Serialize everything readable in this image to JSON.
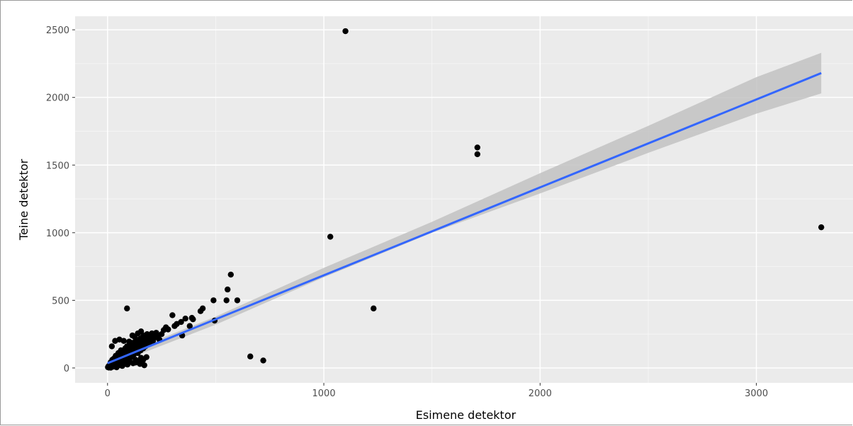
{
  "chart_data": {
    "type": "scatter",
    "title": "",
    "xlabel": "Esimene detektor",
    "ylabel": "Teine detektor",
    "xlim": [
      -150,
      3450
    ],
    "ylim": [
      -110,
      2600
    ],
    "x_ticks": [
      0,
      1000,
      2000,
      3000
    ],
    "x_tick_labels": [
      "0",
      "1000",
      "2000",
      "3000"
    ],
    "y_ticks": [
      0,
      500,
      1000,
      1500,
      2000,
      2500
    ],
    "y_tick_labels": [
      "0",
      "500",
      "1000",
      "1500",
      "2000",
      "2500"
    ],
    "grid": true,
    "legend": "none",
    "colors": {
      "panel_background": "#ebebeb",
      "grid_major": "#ffffff",
      "points": "#000000",
      "fit_line": "#3366ff",
      "confidence_band": "#c2c2c2"
    },
    "points": [
      [
        2,
        5
      ],
      [
        4,
        12
      ],
      [
        6,
        3
      ],
      [
        8,
        18
      ],
      [
        10,
        8
      ],
      [
        12,
        25
      ],
      [
        14,
        40
      ],
      [
        15,
        2
      ],
      [
        18,
        30
      ],
      [
        20,
        15
      ],
      [
        22,
        60
      ],
      [
        25,
        45
      ],
      [
        28,
        10
      ],
      [
        30,
        70
      ],
      [
        32,
        22
      ],
      [
        35,
        55
      ],
      [
        38,
        90
      ],
      [
        40,
        35
      ],
      [
        42,
        5
      ],
      [
        45,
        80
      ],
      [
        48,
        50
      ],
      [
        50,
        110
      ],
      [
        52,
        20
      ],
      [
        55,
        65
      ],
      [
        58,
        95
      ],
      [
        60,
        40
      ],
      [
        62,
        130
      ],
      [
        65,
        75
      ],
      [
        68,
        15
      ],
      [
        70,
        100
      ],
      [
        72,
        55
      ],
      [
        75,
        120
      ],
      [
        78,
        85
      ],
      [
        80,
        30
      ],
      [
        82,
        145
      ],
      [
        85,
        105
      ],
      [
        88,
        60
      ],
      [
        90,
        160
      ],
      [
        92,
        25
      ],
      [
        95,
        125
      ],
      [
        98,
        90
      ],
      [
        100,
        150
      ],
      [
        103,
        45
      ],
      [
        105,
        170
      ],
      [
        108,
        115
      ],
      [
        110,
        80
      ],
      [
        112,
        185
      ],
      [
        115,
        140
      ],
      [
        118,
        35
      ],
      [
        120,
        165
      ],
      [
        122,
        100
      ],
      [
        125,
        190
      ],
      [
        128,
        130
      ],
      [
        130,
        60
      ],
      [
        133,
        175
      ],
      [
        135,
        150
      ],
      [
        138,
        200
      ],
      [
        140,
        110
      ],
      [
        142,
        45
      ],
      [
        145,
        185
      ],
      [
        148,
        160
      ],
      [
        150,
        215
      ],
      [
        153,
        130
      ],
      [
        155,
        75
      ],
      [
        158,
        195
      ],
      [
        160,
        170
      ],
      [
        163,
        230
      ],
      [
        165,
        145
      ],
      [
        168,
        205
      ],
      [
        170,
        185
      ],
      [
        173,
        240
      ],
      [
        175,
        160
      ],
      [
        178,
        215
      ],
      [
        180,
        200
      ],
      [
        183,
        250
      ],
      [
        185,
        175
      ],
      [
        188,
        225
      ],
      [
        190,
        210
      ],
      [
        193,
        240
      ],
      [
        195,
        190
      ],
      [
        198,
        230
      ],
      [
        200,
        215
      ],
      [
        205,
        255
      ],
      [
        210,
        200
      ],
      [
        215,
        240
      ],
      [
        220,
        225
      ],
      [
        225,
        260
      ],
      [
        230,
        235
      ],
      [
        240,
        210
      ],
      [
        250,
        250
      ],
      [
        20,
        160
      ],
      [
        35,
        200
      ],
      [
        55,
        210
      ],
      [
        75,
        200
      ],
      [
        90,
        440
      ],
      [
        100,
        195
      ],
      [
        115,
        240
      ],
      [
        125,
        230
      ],
      [
        140,
        255
      ],
      [
        155,
        270
      ],
      [
        165,
        60
      ],
      [
        180,
        80
      ],
      [
        130,
        40
      ],
      [
        150,
        30
      ],
      [
        170,
        20
      ],
      [
        260,
        280
      ],
      [
        270,
        300
      ],
      [
        280,
        285
      ],
      [
        300,
        390
      ],
      [
        310,
        310
      ],
      [
        320,
        325
      ],
      [
        340,
        340
      ],
      [
        345,
        240
      ],
      [
        360,
        365
      ],
      [
        380,
        310
      ],
      [
        390,
        370
      ],
      [
        395,
        360
      ],
      [
        430,
        420
      ],
      [
        440,
        440
      ],
      [
        490,
        500
      ],
      [
        495,
        350
      ],
      [
        550,
        500
      ],
      [
        555,
        580
      ],
      [
        570,
        690
      ],
      [
        600,
        500
      ],
      [
        660,
        85
      ],
      [
        720,
        55
      ],
      [
        1030,
        970
      ],
      [
        1100,
        2490
      ],
      [
        1230,
        440
      ],
      [
        1710,
        1630
      ],
      [
        1710,
        1580
      ],
      [
        3300,
        1040
      ]
    ],
    "fit_line": {
      "x": [
        0,
        3300
      ],
      "y": [
        35,
        2180
      ]
    },
    "confidence_band": {
      "x": [
        0,
        500,
        1000,
        1500,
        2000,
        2500,
        3000,
        3300
      ],
      "upper": [
        60,
        380,
        740,
        1080,
        1440,
        1790,
        2150,
        2330
      ],
      "lower": [
        10,
        320,
        670,
        1000,
        1290,
        1590,
        1880,
        2030
      ]
    }
  }
}
